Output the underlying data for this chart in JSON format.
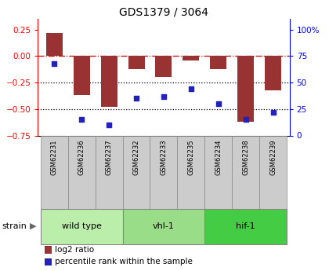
{
  "title": "GDS1379 / 3064",
  "samples": [
    "GSM62231",
    "GSM62236",
    "GSM62237",
    "GSM62232",
    "GSM62233",
    "GSM62235",
    "GSM62234",
    "GSM62238",
    "GSM62239"
  ],
  "log2_ratio": [
    0.22,
    -0.37,
    -0.48,
    -0.12,
    -0.2,
    -0.04,
    -0.12,
    -0.62,
    -0.32
  ],
  "percentile_rank": [
    68,
    15,
    10,
    35,
    37,
    44,
    30,
    15,
    22
  ],
  "groups": [
    {
      "label": "wild type",
      "start": 0,
      "end": 3,
      "color": "#bbeeaa"
    },
    {
      "label": "vhl-1",
      "start": 3,
      "end": 6,
      "color": "#99dd88"
    },
    {
      "label": "hif-1",
      "start": 6,
      "end": 9,
      "color": "#44cc44"
    }
  ],
  "strain_label": "strain",
  "bar_color": "#993333",
  "dot_color": "#2222bb",
  "ylim_left": [
    -0.75,
    0.35
  ],
  "yticks_left": [
    -0.75,
    -0.5,
    -0.25,
    0,
    0.25
  ],
  "ylim_right": [
    0,
    110
  ],
  "yticks_right": [
    0,
    25,
    50,
    75,
    100
  ],
  "background_plot": "#ffffff",
  "background_sample": "#cccccc",
  "legend_bar_label": "log2 ratio",
  "legend_dot_label": "percentile rank within the sample"
}
